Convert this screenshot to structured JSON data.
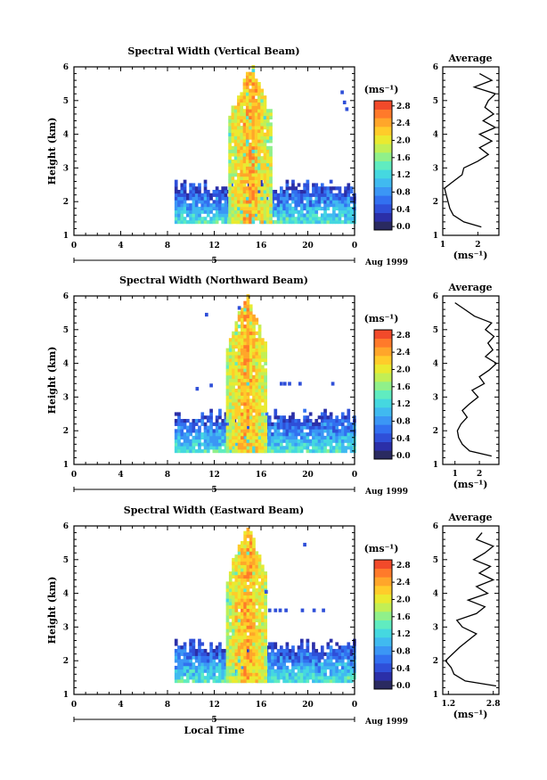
{
  "chart_data": [
    {
      "type": "heatmap",
      "title": "Spectral Width (Vertical Beam)",
      "ylabel": "Height (km)",
      "xlabel": "",
      "xlim": [
        0,
        24
      ],
      "ylim": [
        1,
        6
      ],
      "xticks": [
        "0",
        "4",
        "8",
        "12",
        "16",
        "20",
        "0"
      ],
      "yticks": [
        "1",
        "2",
        "3",
        "4",
        "5",
        "6"
      ],
      "date_bar": {
        "start": 0,
        "end": 24,
        "label": "5",
        "month": "Aug 1999"
      },
      "colorbar": {
        "unit": "(ms⁻¹)",
        "ticks": [
          "0.0",
          "0.4",
          "0.8",
          "1.2",
          "1.6",
          "2.0",
          "2.4",
          "2.8"
        ],
        "range": [
          0,
          3.0
        ]
      },
      "average": {
        "title": "Average",
        "xlabel": "(ms⁻¹)",
        "xticks": [
          "1",
          "2"
        ],
        "xlim": [
          1,
          2.6
        ],
        "heights": [
          1.25,
          1.4,
          1.6,
          1.8,
          2.0,
          2.2,
          2.4,
          2.6,
          2.8,
          3.0,
          3.2,
          3.4,
          3.6,
          3.8,
          4.0,
          4.2,
          4.4,
          4.6,
          4.8,
          5.0,
          5.2,
          5.4,
          5.6,
          5.8
        ],
        "values": [
          2.1,
          1.6,
          1.3,
          1.2,
          1.15,
          1.1,
          1.05,
          1.3,
          1.55,
          1.6,
          2.0,
          2.3,
          2.05,
          2.4,
          2.05,
          2.5,
          2.15,
          2.45,
          2.2,
          2.3,
          2.5,
          1.9,
          2.4,
          2.05
        ]
      }
    },
    {
      "type": "heatmap",
      "title": "Spectral Width (Northward Beam)",
      "ylabel": "Height (km)",
      "xlabel": "",
      "xlim": [
        0,
        24
      ],
      "ylim": [
        1,
        6
      ],
      "xticks": [
        "0",
        "4",
        "8",
        "12",
        "16",
        "20",
        "0"
      ],
      "yticks": [
        "1",
        "2",
        "3",
        "4",
        "5",
        "6"
      ],
      "date_bar": {
        "start": 0,
        "end": 24,
        "label": "5",
        "month": "Aug 1999"
      },
      "colorbar": {
        "unit": "(ms⁻¹)",
        "ticks": [
          "0.0",
          "0.4",
          "0.8",
          "1.2",
          "1.6",
          "2.0",
          "2.4",
          "2.8"
        ],
        "range": [
          0,
          3.0
        ]
      },
      "average": {
        "title": "Average",
        "xlabel": "(ms⁻¹)",
        "xticks": [
          "1",
          "2"
        ],
        "xlim": [
          0.5,
          2.8
        ],
        "heights": [
          1.25,
          1.4,
          1.6,
          1.8,
          2.0,
          2.2,
          2.4,
          2.6,
          2.8,
          3.0,
          3.2,
          3.4,
          3.6,
          3.8,
          4.0,
          4.2,
          4.4,
          4.6,
          4.8,
          5.0,
          5.2,
          5.4,
          5.6,
          5.8
        ],
        "values": [
          2.5,
          1.6,
          1.3,
          1.15,
          1.1,
          1.25,
          1.5,
          1.3,
          1.6,
          1.95,
          1.7,
          2.2,
          2.0,
          2.4,
          2.7,
          2.25,
          2.55,
          2.35,
          2.6,
          2.25,
          2.5,
          1.8,
          1.4,
          1.0
        ]
      }
    },
    {
      "type": "heatmap",
      "title": "Spectral Width (Eastward Beam)",
      "ylabel": "Height (km)",
      "xlabel": "Local Time",
      "xlim": [
        0,
        24
      ],
      "ylim": [
        1,
        6
      ],
      "xticks": [
        "0",
        "4",
        "8",
        "12",
        "16",
        "20",
        "0"
      ],
      "yticks": [
        "1",
        "2",
        "3",
        "4",
        "5",
        "6"
      ],
      "date_bar": {
        "start": 0,
        "end": 24,
        "label": "5",
        "month": "Aug 1999"
      },
      "colorbar": {
        "unit": "(ms⁻¹)",
        "ticks": [
          "0.0",
          "0.4",
          "0.8",
          "1.2",
          "1.6",
          "2.0",
          "2.4",
          "2.8"
        ],
        "range": [
          0,
          3.0
        ]
      },
      "average": {
        "title": "Average",
        "xlabel": "(ms⁻¹)",
        "xticks": [
          "1.2",
          "2.8"
        ],
        "xlim": [
          1.0,
          3.0
        ],
        "heights": [
          1.25,
          1.4,
          1.6,
          1.8,
          2.0,
          2.2,
          2.4,
          2.6,
          2.8,
          3.0,
          3.2,
          3.4,
          3.6,
          3.8,
          4.0,
          4.2,
          4.4,
          4.6,
          4.8,
          5.0,
          5.2,
          5.4,
          5.6,
          5.8
        ],
        "values": [
          2.9,
          1.8,
          1.4,
          1.3,
          1.1,
          1.35,
          1.6,
          1.9,
          2.2,
          1.7,
          1.5,
          2.2,
          2.5,
          1.9,
          2.6,
          2.2,
          2.8,
          2.3,
          2.7,
          2.1,
          2.5,
          2.8,
          2.2,
          2.4
        ]
      }
    }
  ],
  "colors": {
    "scale": [
      "#2a2a60",
      "#2b2fa8",
      "#2f4fd8",
      "#3270f0",
      "#3b96f5",
      "#40baf0",
      "#45d8e0",
      "#60ecc0",
      "#90f08a",
      "#c2ef55",
      "#eaea30",
      "#ffcc2a",
      "#ffa62a",
      "#ff7a2a",
      "#f24a2a"
    ]
  }
}
